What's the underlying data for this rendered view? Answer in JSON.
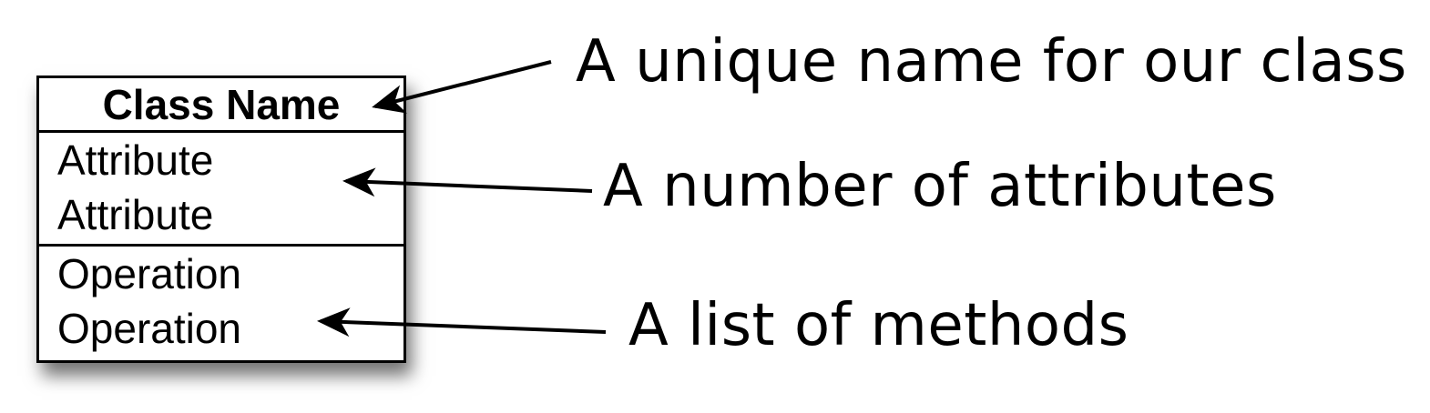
{
  "uml_class": {
    "name": "Class Name",
    "attributes": [
      "Attribute",
      "Attribute"
    ],
    "operations": [
      "Operation",
      "Operation"
    ]
  },
  "annotations": {
    "name": "A unique name for our class",
    "attributes": "A number of attributes",
    "methods": "A list of methods"
  },
  "colors": {
    "stroke": "#000000",
    "background": "#ffffff"
  }
}
